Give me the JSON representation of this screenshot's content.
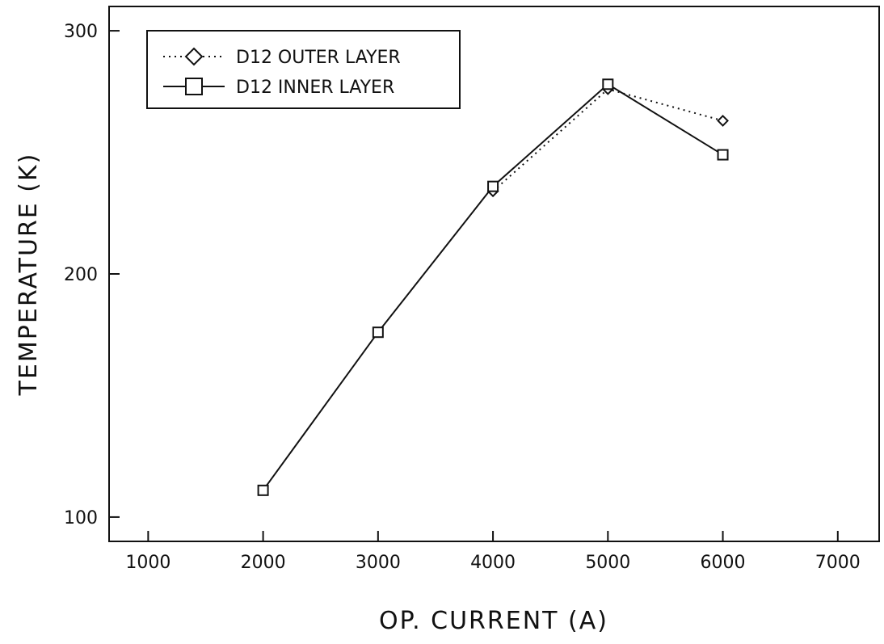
{
  "chart_data": {
    "type": "line",
    "title": "",
    "xlabel": "OP. CURRENT (A)",
    "ylabel": "TEMPERATURE (K)",
    "xlim": [
      660,
      7360
    ],
    "ylim": [
      90,
      310
    ],
    "xticks": [
      1000,
      2000,
      3000,
      4000,
      5000,
      6000,
      7000
    ],
    "yticks": [
      100,
      200,
      300
    ],
    "grid": false,
    "legend_position": "top-left",
    "series": [
      {
        "name": "D12 OUTER LAYER",
        "marker": "diamond",
        "line_style": "dotted",
        "x": [
          4000,
          5000,
          6000
        ],
        "y": [
          234,
          276,
          263
        ]
      },
      {
        "name": "D12 INNER LAYER",
        "marker": "square",
        "line_style": "solid",
        "x": [
          2000,
          3000,
          4000,
          5000,
          6000
        ],
        "y": [
          111,
          176,
          236,
          278,
          249
        ]
      }
    ]
  }
}
